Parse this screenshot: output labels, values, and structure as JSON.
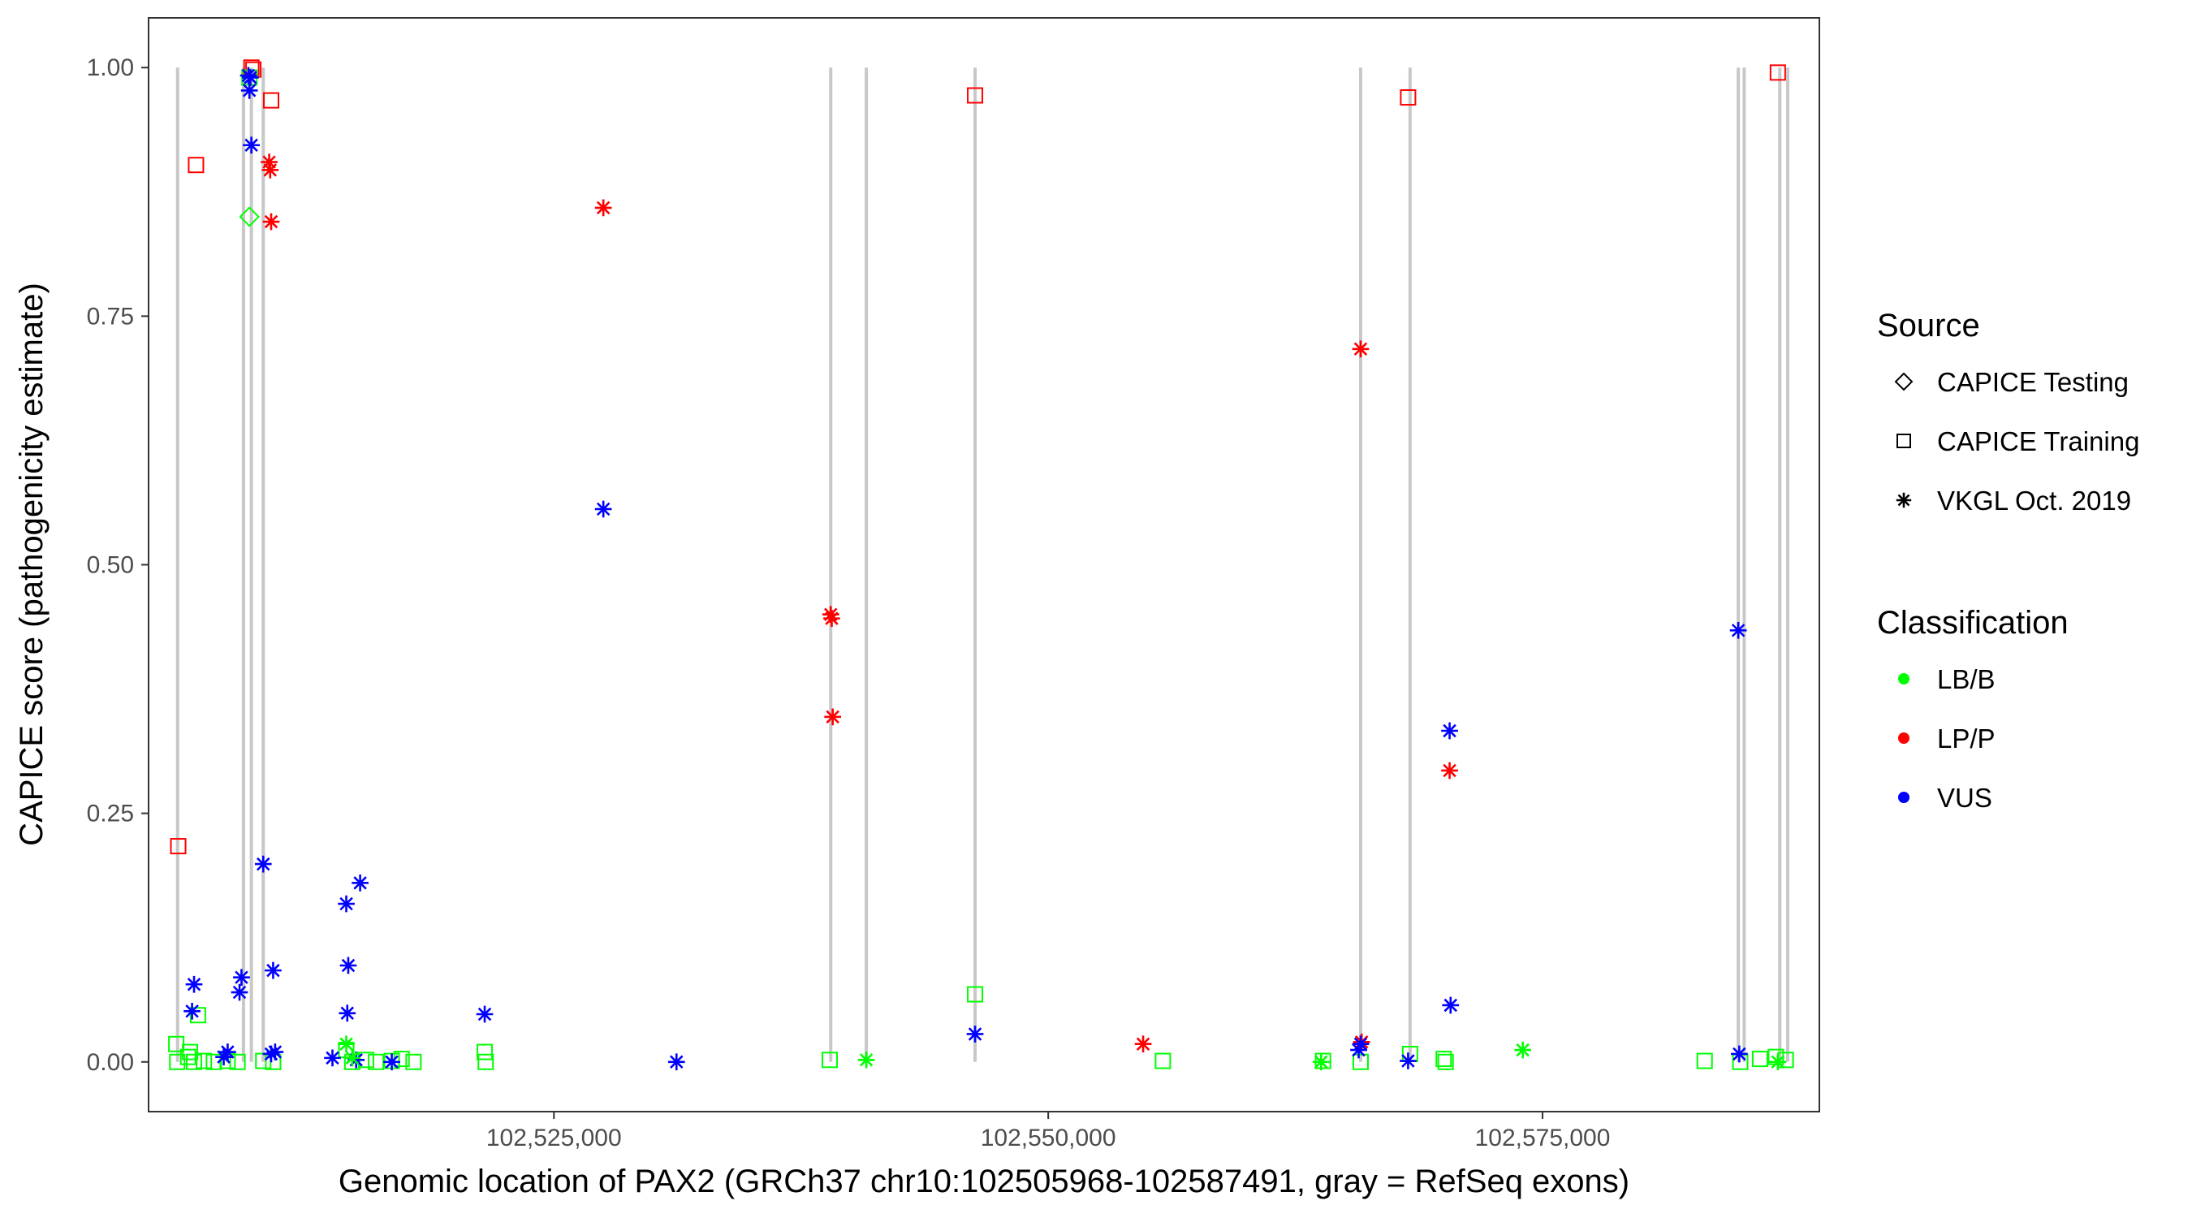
{
  "chart_data": {
    "type": "scatter",
    "title": "",
    "xlabel": "Genomic location of PAX2 (GRCh37 chr10:102505968-102587491, gray = RefSeq exons)",
    "ylabel": "CAPICE score (pathogenicity estimate)",
    "xlim": [
      102504500,
      102589000
    ],
    "ylim": [
      -0.05,
      1.05
    ],
    "x_ticks": [
      102525000,
      102550000,
      102575000
    ],
    "x_tick_labels": [
      "102,525,000",
      "102,550,000",
      "102,575,000"
    ],
    "y_ticks": [
      0,
      0.25,
      0.5,
      0.75,
      1
    ],
    "y_tick_labels": [
      "0.00",
      "0.25",
      "0.50",
      "0.75",
      "1.00"
    ],
    "grid": false,
    "legend_placement": "right",
    "exon_lines": [
      102505968,
      102509300,
      102509700,
      102510300,
      102539000,
      102540800,
      102546300,
      102565800,
      102568300,
      102584900,
      102585200,
      102587000,
      102587400
    ],
    "colors": {
      "LB/B": "#00ff00",
      "LP/P": "#ff0000",
      "VUS": "#0000ff",
      "exon": "#c8c8c8"
    },
    "legend": {
      "source": {
        "title": "Source",
        "items": [
          {
            "label": "CAPICE Testing",
            "shape": "diamond"
          },
          {
            "label": "CAPICE Training",
            "shape": "square"
          },
          {
            "label": "VKGL Oct. 2019",
            "shape": "asterisk"
          }
        ]
      },
      "classification": {
        "title": "Classification",
        "items": [
          {
            "label": "LB/B",
            "color": "#00ff00"
          },
          {
            "label": "LP/P",
            "color": "#ff0000"
          },
          {
            "label": "VUS",
            "color": "#0000ff"
          }
        ]
      }
    },
    "series": [
      {
        "source": "CAPICE Training",
        "classification": "LP/P",
        "points": [
          [
            102506000,
            0.217
          ],
          [
            102506900,
            0.902
          ],
          [
            102509700,
            1.0
          ],
          [
            102509800,
            0.998
          ],
          [
            102510700,
            0.967
          ],
          [
            102546300,
            0.972
          ],
          [
            102568200,
            0.97
          ],
          [
            102586900,
            0.995
          ]
        ]
      },
      {
        "source": "CAPICE Training",
        "classification": "LB/B",
        "points": [
          [
            102505900,
            0.018
          ],
          [
            102505950,
            0.0
          ],
          [
            102506500,
            0.005
          ],
          [
            102506600,
            0.01
          ],
          [
            102506800,
            0.0
          ],
          [
            102507000,
            0.047
          ],
          [
            102507300,
            0.001
          ],
          [
            102507800,
            0.0
          ],
          [
            102508500,
            0.001
          ],
          [
            102509000,
            0.0
          ],
          [
            102509600,
            0.99
          ],
          [
            102510300,
            0.001
          ],
          [
            102510800,
            0.0
          ],
          [
            102514500,
            0.012
          ],
          [
            102514800,
            0.0
          ],
          [
            102515500,
            0.002
          ],
          [
            102516000,
            0.0
          ],
          [
            102516800,
            0.001
          ],
          [
            102517300,
            0.003
          ],
          [
            102517900,
            0.0
          ],
          [
            102521500,
            0.01
          ],
          [
            102521550,
            0.0
          ],
          [
            102538950,
            0.002
          ],
          [
            102546300,
            0.068
          ],
          [
            102555800,
            0.001
          ],
          [
            102563900,
            0.001
          ],
          [
            102565800,
            0.0
          ],
          [
            102568300,
            0.008
          ],
          [
            102570000,
            0.003
          ],
          [
            102570100,
            0.0
          ],
          [
            102583200,
            0.001
          ],
          [
            102585000,
            0.0
          ],
          [
            102586000,
            0.003
          ],
          [
            102586800,
            0.005
          ],
          [
            102587300,
            0.002
          ]
        ]
      },
      {
        "source": "CAPICE Testing",
        "classification": "LB/B",
        "points": [
          [
            102509600,
            0.85
          ]
        ]
      },
      {
        "source": "VKGL Oct. 2019",
        "classification": "LP/P",
        "points": [
          [
            102510600,
            0.905
          ],
          [
            102510650,
            0.897
          ],
          [
            102510700,
            0.845
          ],
          [
            102527500,
            0.859
          ],
          [
            102539000,
            0.45
          ],
          [
            102539050,
            0.446
          ],
          [
            102539100,
            0.347
          ],
          [
            102554800,
            0.018
          ],
          [
            102565800,
            0.717
          ],
          [
            102565850,
            0.02
          ],
          [
            102570300,
            0.293
          ]
        ]
      },
      {
        "source": "VKGL Oct. 2019",
        "classification": "VUS",
        "points": [
          [
            102509550,
            0.992
          ],
          [
            102509650,
            0.99
          ],
          [
            102509600,
            0.977
          ],
          [
            102509700,
            0.922
          ],
          [
            102510300,
            0.199
          ],
          [
            102510800,
            0.092
          ],
          [
            102506800,
            0.078
          ],
          [
            102506700,
            0.051
          ],
          [
            102509200,
            0.085
          ],
          [
            102509100,
            0.07
          ],
          [
            102508500,
            0.01
          ],
          [
            102508300,
            0.005
          ],
          [
            102510700,
            0.008
          ],
          [
            102510900,
            0.01
          ],
          [
            102514500,
            0.159
          ],
          [
            102515200,
            0.18
          ],
          [
            102514600,
            0.097
          ],
          [
            102514550,
            0.049
          ],
          [
            102513800,
            0.004
          ],
          [
            102515000,
            0.002
          ],
          [
            102516800,
            0.0
          ],
          [
            102521500,
            0.048
          ],
          [
            102527500,
            0.556
          ],
          [
            102531200,
            0.0
          ],
          [
            102546300,
            0.028
          ],
          [
            102565700,
            0.012
          ],
          [
            102565800,
            0.018
          ],
          [
            102568200,
            0.001
          ],
          [
            102570300,
            0.333
          ],
          [
            102570350,
            0.057
          ],
          [
            102584900,
            0.434
          ],
          [
            102584950,
            0.008
          ]
        ]
      },
      {
        "source": "VKGL Oct. 2019",
        "classification": "LB/B",
        "points": [
          [
            102514500,
            0.018
          ],
          [
            102514800,
            0.004
          ],
          [
            102540800,
            0.002
          ],
          [
            102563800,
            0.0
          ],
          [
            102574000,
            0.012
          ],
          [
            102586900,
            0.0
          ]
        ]
      }
    ]
  }
}
